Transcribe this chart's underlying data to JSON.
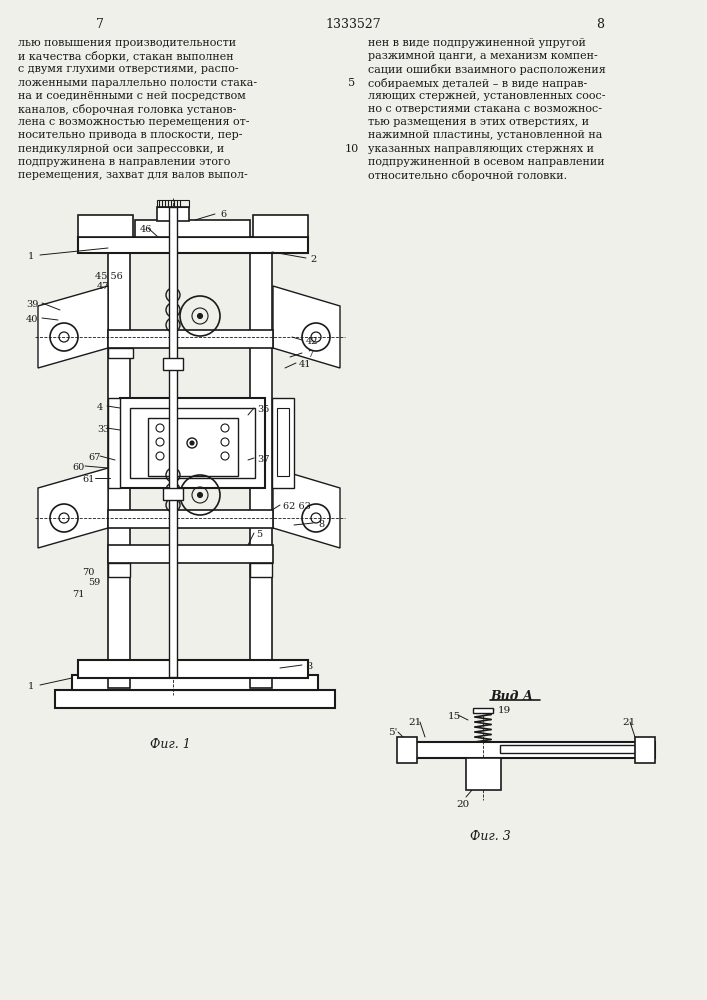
{
  "page_num_left": "7",
  "page_num_center": "1333527",
  "page_num_right": "8",
  "line_number_5": "5",
  "line_number_10": "10",
  "text_left": [
    "лью повышения производительности",
    "и качества сборки, стакан выполнен",
    "с двумя глухими отверстиями, распо-",
    "ложенными параллельно полости стака-",
    "на и соединёнными с ней посредством",
    "каналов, сборочная головка установ-",
    "лена с возможностью перемещения от-",
    "носительно привода в плоскости, пер-",
    "пендикулярной оси запрессовки, и",
    "подпружинена в направлении этого",
    "перемещения, захват для валов выпол-"
  ],
  "text_right": [
    "нен в виде подпружиненной упругой",
    "разжимной цанги, а механизм компен-",
    "сации ошибки взаимного расположения",
    "собираемых деталей – в виде направ-",
    "ляющих стержней, установленных соос-",
    "но с отверстиями стакана с возможнос-",
    "тью размещения в этих отверстиях, и",
    "нажимной пластины, установленной на",
    "указанных направляющих стержнях и",
    "подпружиненной в осевом направлении",
    "относительно сборочной головки."
  ],
  "fig1_caption": "Фиг. 1",
  "fig3_caption": "Фиг. 3",
  "vid_a_label": "Вид А",
  "bg_color": "#f0f0eb",
  "line_color": "#1a1a1a",
  "text_color": "#1a1a1a"
}
